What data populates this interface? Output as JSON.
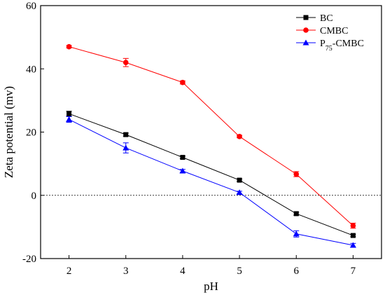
{
  "chart_data": {
    "type": "line",
    "xlabel": "pH",
    "ylabel": "Zeta potential (mv)",
    "xlim": [
      1.5,
      7.5
    ],
    "ylim": [
      -20,
      60
    ],
    "xticks": [
      2,
      3,
      4,
      5,
      6,
      7
    ],
    "yticks": [
      -20,
      0,
      20,
      40,
      60
    ],
    "reference_line": {
      "y": 0,
      "style": "dotted"
    },
    "legend_position": "top-right",
    "grid": false,
    "x": [
      2,
      3,
      4,
      5,
      6,
      7
    ],
    "series": [
      {
        "name": "BC",
        "name_base": "BC",
        "name_sub": "",
        "name_rest": "",
        "color": "#000000",
        "marker": "square",
        "values": [
          25.8,
          19.2,
          12.0,
          4.8,
          -5.8,
          -12.7
        ],
        "errors": [
          0.8,
          0.5,
          0.4,
          0.4,
          0.5,
          0.4
        ]
      },
      {
        "name": "CMBC",
        "name_base": "CMBC",
        "name_sub": "",
        "name_rest": "",
        "color": "#ff0000",
        "marker": "circle",
        "values": [
          47.0,
          42.0,
          35.7,
          18.6,
          6.7,
          -9.6
        ],
        "errors": [
          0.4,
          1.3,
          0.5,
          0.4,
          0.8,
          0.8
        ]
      },
      {
        "name": "P75-CMBC",
        "name_base": "P",
        "name_sub": "75",
        "name_rest": "-CMBC",
        "color": "#0000ff",
        "marker": "triangle",
        "values": [
          24.0,
          15.0,
          7.7,
          0.9,
          -12.2,
          -15.8
        ],
        "errors": [
          0.9,
          1.6,
          0.5,
          0.4,
          1.0,
          0.6
        ]
      }
    ]
  }
}
